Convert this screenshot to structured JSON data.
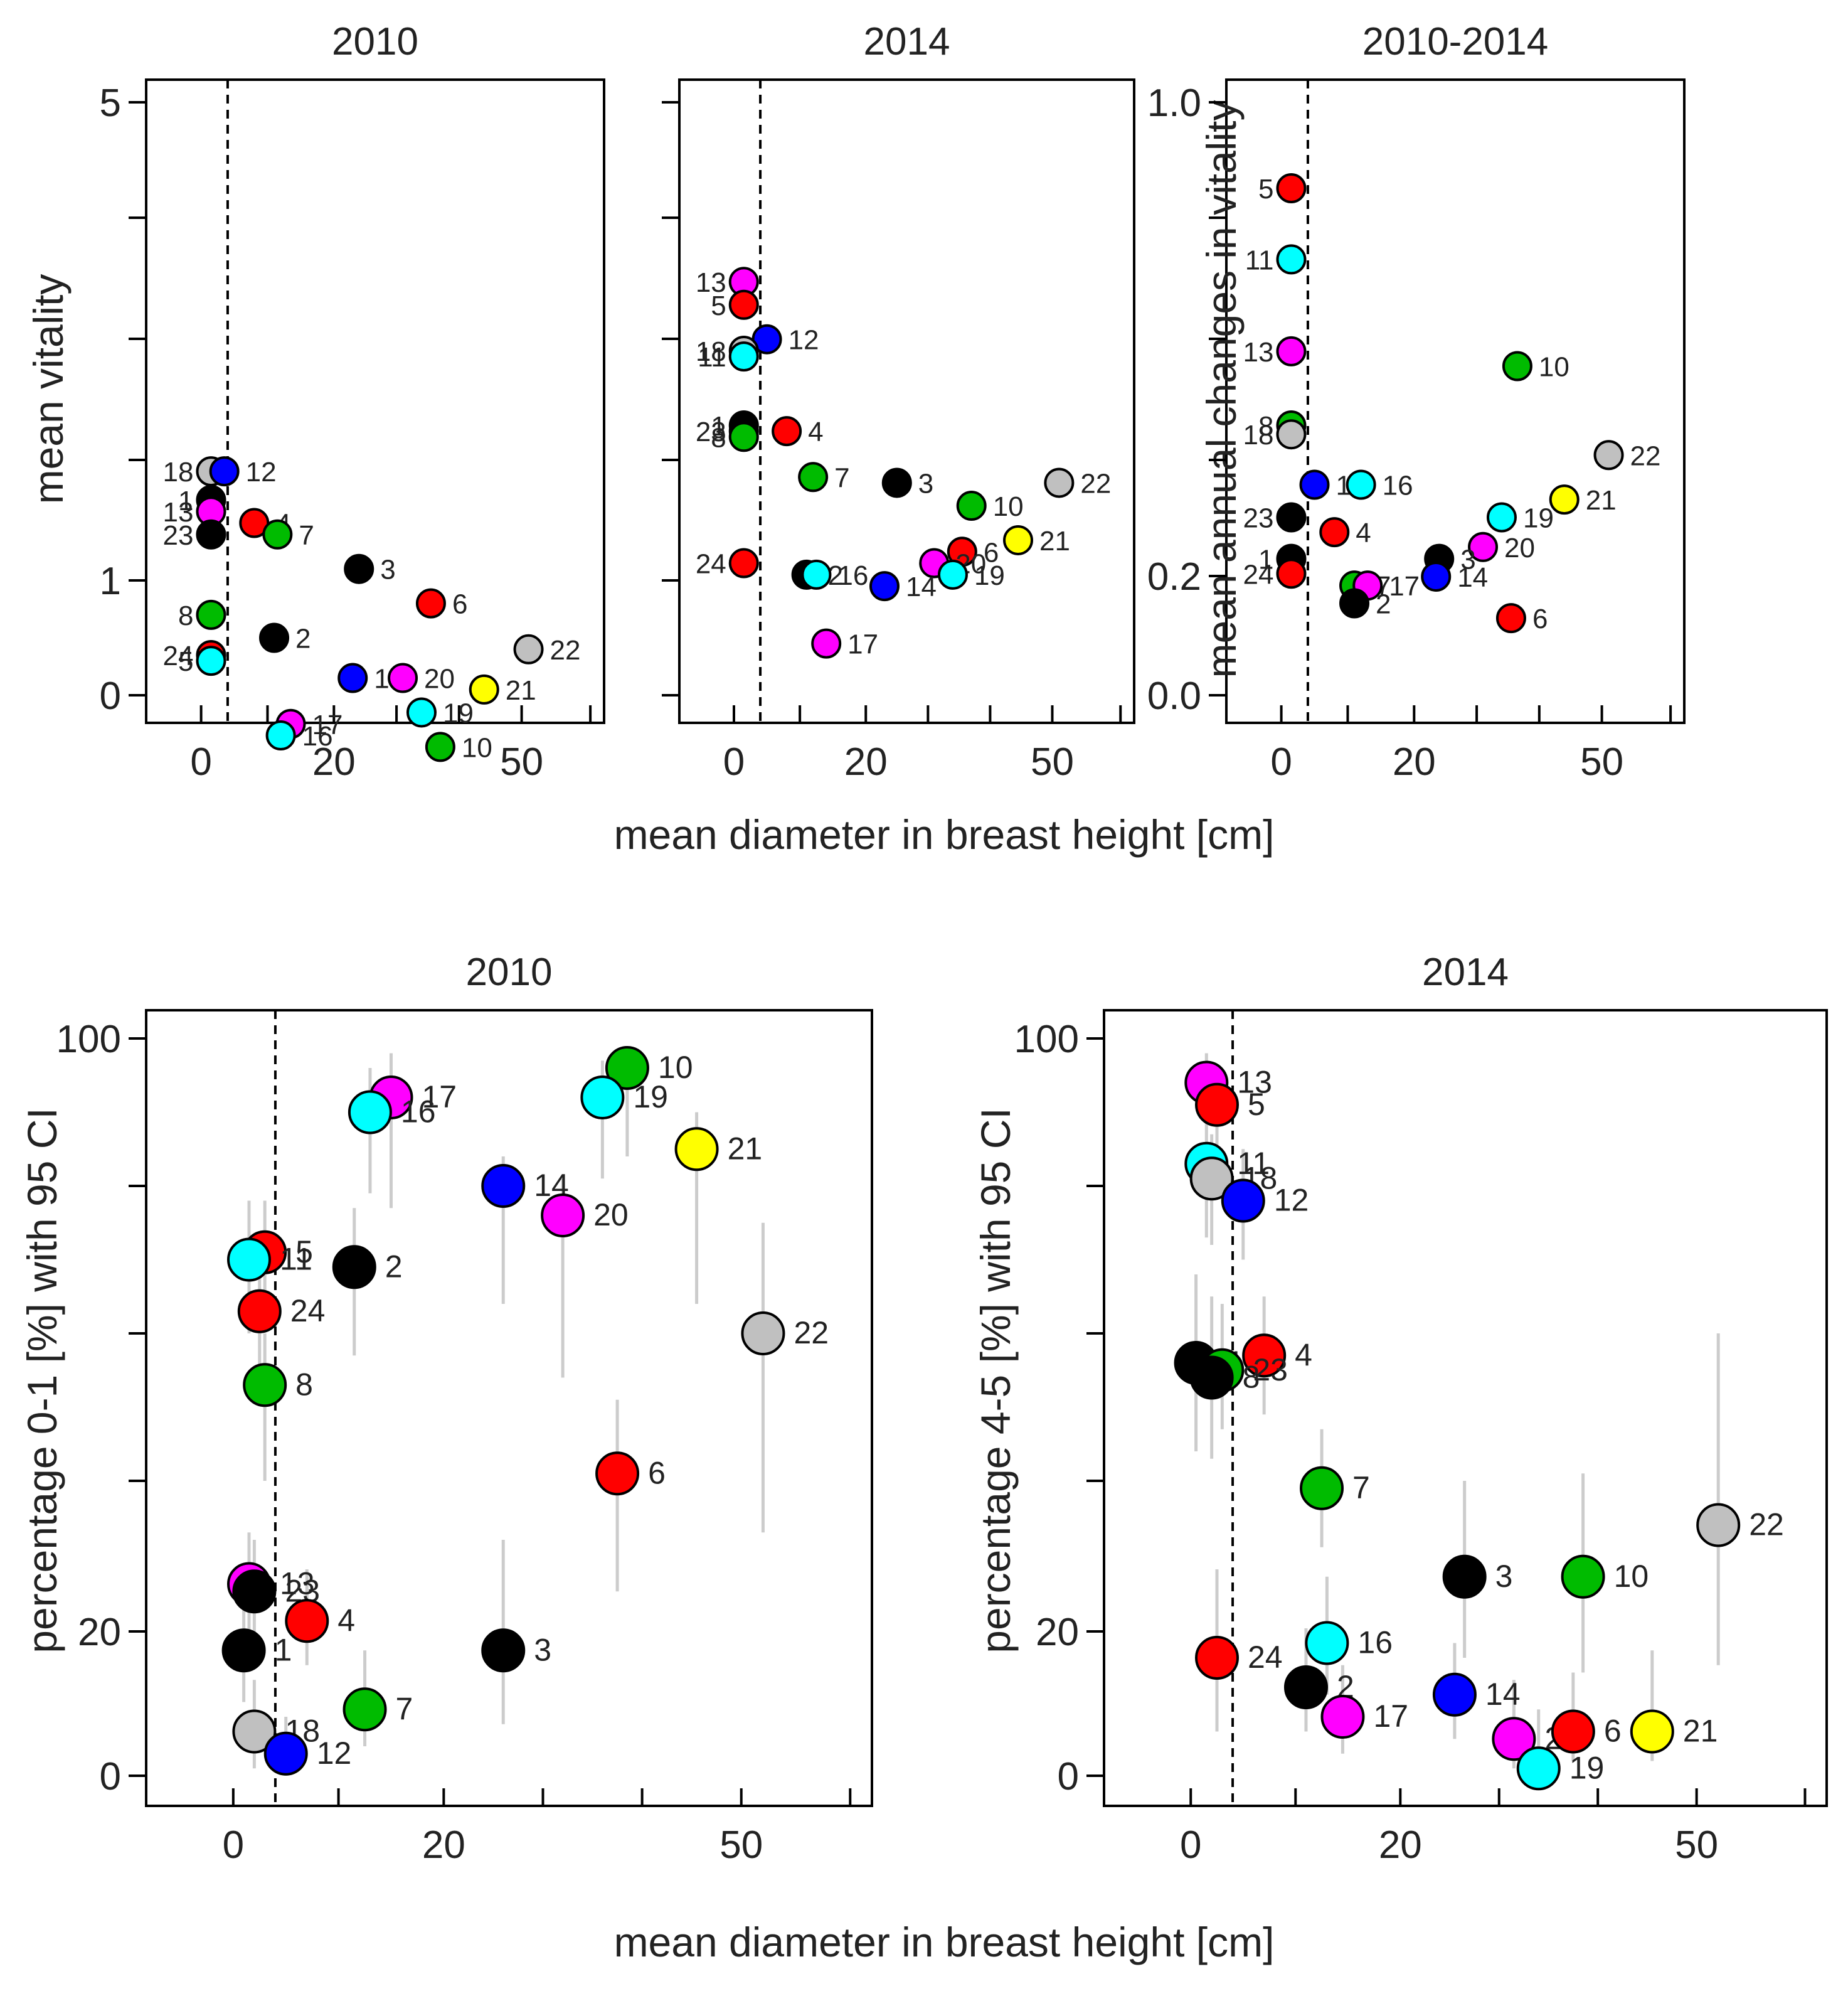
{
  "figure": {
    "top_xlabel": "mean diameter in breast height [cm]",
    "bottom_xlabel": "mean diameter in breast height [cm]"
  },
  "colors": {
    "black": "#000000",
    "red": "#ff0000",
    "blue": "#0000ff",
    "green": "#00bb00",
    "cyan": "#00ffff",
    "magenta": "#ff00ff",
    "grey": "#c0c0c0",
    "yellow": "#ffff00",
    "ci": "#cccccc"
  },
  "chart_data": [
    {
      "type": "scatter",
      "title": "2010",
      "xlabel": "",
      "ylabel": "mean vitality",
      "x_ticks": [
        "0",
        "20",
        "50"
      ],
      "y_ticks": [
        "0",
        "1",
        "5"
      ],
      "x_ref_line": 4,
      "points": [
        {
          "label": "18",
          "x": 1.5,
          "y": 1.95,
          "color": "grey"
        },
        {
          "label": "12",
          "x": 3.5,
          "y": 1.95,
          "color": "blue"
        },
        {
          "label": "1",
          "x": 1.5,
          "y": 1.7,
          "color": "black"
        },
        {
          "label": "13",
          "x": 1.5,
          "y": 1.6,
          "color": "magenta"
        },
        {
          "label": "4",
          "x": 8,
          "y": 1.5,
          "color": "red"
        },
        {
          "label": "7",
          "x": 11.5,
          "y": 1.4,
          "color": "green"
        },
        {
          "label": "23",
          "x": 1.5,
          "y": 1.4,
          "color": "black"
        },
        {
          "label": "3",
          "x": 24,
          "y": 1.1,
          "color": "black"
        },
        {
          "label": "6",
          "x": 35.5,
          "y": 0.8,
          "color": "red"
        },
        {
          "label": "8",
          "x": 1.5,
          "y": 0.7,
          "color": "green"
        },
        {
          "label": "2",
          "x": 11,
          "y": 0.5,
          "color": "black"
        },
        {
          "label": "22",
          "x": 51,
          "y": 0.4,
          "color": "grey"
        },
        {
          "label": "24",
          "x": 1.5,
          "y": 0.35,
          "color": "red"
        },
        {
          "label": "5",
          "x": 1.5,
          "y": 0.3,
          "color": "cyan"
        },
        {
          "label": "14",
          "x": 23,
          "y": 0.15,
          "color": "blue"
        },
        {
          "label": "20",
          "x": 31,
          "y": 0.15,
          "color": "magenta"
        },
        {
          "label": "21",
          "x": 44,
          "y": 0.05,
          "color": "yellow"
        },
        {
          "label": "19",
          "x": 34,
          "y": -0.15,
          "color": "cyan"
        },
        {
          "label": "17",
          "x": 13.5,
          "y": -0.25,
          "color": "magenta"
        },
        {
          "label": "16",
          "x": 12,
          "y": -0.35,
          "color": "cyan"
        },
        {
          "label": "10",
          "x": 37,
          "y": -0.45,
          "color": "green"
        }
      ]
    },
    {
      "type": "scatter",
      "title": "2014",
      "xlabel": "",
      "ylabel": "",
      "x_ticks": [
        "0",
        "20",
        "50"
      ],
      "y_ticks": [],
      "x_ref_line": 4,
      "points": [
        {
          "label": "13",
          "x": 1.5,
          "y": 3.6,
          "color": "magenta"
        },
        {
          "label": "5",
          "x": 1.5,
          "y": 3.4,
          "color": "red"
        },
        {
          "label": "12",
          "x": 5,
          "y": 3.1,
          "color": "blue"
        },
        {
          "label": "18",
          "x": 1.5,
          "y": 3.0,
          "color": "grey"
        },
        {
          "label": "11",
          "x": 1.5,
          "y": 2.95,
          "color": "cyan"
        },
        {
          "label": "1",
          "x": 1.5,
          "y": 2.35,
          "color": "black"
        },
        {
          "label": "4",
          "x": 8,
          "y": 2.3,
          "color": "red"
        },
        {
          "label": "23",
          "x": 1.5,
          "y": 2.3,
          "color": "black"
        },
        {
          "label": "8",
          "x": 1.5,
          "y": 2.25,
          "color": "green"
        },
        {
          "label": "7",
          "x": 12,
          "y": 1.9,
          "color": "green"
        },
        {
          "label": "3",
          "x": 25,
          "y": 1.85,
          "color": "black"
        },
        {
          "label": "22",
          "x": 51,
          "y": 1.85,
          "color": "grey"
        },
        {
          "label": "10",
          "x": 37,
          "y": 1.65,
          "color": "green"
        },
        {
          "label": "21",
          "x": 44.5,
          "y": 1.35,
          "color": "yellow"
        },
        {
          "label": "6",
          "x": 35.5,
          "y": 1.25,
          "color": "red"
        },
        {
          "label": "20",
          "x": 31,
          "y": 1.15,
          "color": "magenta"
        },
        {
          "label": "24",
          "x": 1.5,
          "y": 1.15,
          "color": "red"
        },
        {
          "label": "2",
          "x": 11,
          "y": 1.05,
          "color": "black"
        },
        {
          "label": "16",
          "x": 12.5,
          "y": 1.05,
          "color": "cyan"
        },
        {
          "label": "19",
          "x": 34,
          "y": 1.05,
          "color": "cyan"
        },
        {
          "label": "14",
          "x": 23,
          "y": 0.95,
          "color": "blue"
        },
        {
          "label": "17",
          "x": 14,
          "y": 0.45,
          "color": "magenta"
        }
      ]
    },
    {
      "type": "scatter",
      "title": "2010-2014",
      "xlabel": "",
      "ylabel": "mean annual changes in vitality",
      "x_ticks": [
        "0",
        "20",
        "50"
      ],
      "y_ticks": [
        "0.0",
        "0.2",
        "1.0"
      ],
      "x_ref_line": 4,
      "points": [
        {
          "label": "5",
          "x": 1.5,
          "y": 0.855,
          "color": "red"
        },
        {
          "label": "11",
          "x": 1.5,
          "y": 0.735,
          "color": "cyan"
        },
        {
          "label": "13",
          "x": 1.5,
          "y": 0.58,
          "color": "magenta"
        },
        {
          "label": "10",
          "x": 36.5,
          "y": 0.555,
          "color": "green"
        },
        {
          "label": "8",
          "x": 1.5,
          "y": 0.455,
          "color": "green"
        },
        {
          "label": "18",
          "x": 1.5,
          "y": 0.44,
          "color": "grey"
        },
        {
          "label": "22",
          "x": 51,
          "y": 0.405,
          "color": "grey"
        },
        {
          "label": "12",
          "x": 5,
          "y": 0.355,
          "color": "blue"
        },
        {
          "label": "16",
          "x": 12,
          "y": 0.355,
          "color": "cyan"
        },
        {
          "label": "21",
          "x": 44,
          "y": 0.33,
          "color": "yellow"
        },
        {
          "label": "19",
          "x": 34,
          "y": 0.3,
          "color": "cyan"
        },
        {
          "label": "23",
          "x": 1.5,
          "y": 0.3,
          "color": "black"
        },
        {
          "label": "4",
          "x": 8,
          "y": 0.275,
          "color": "red"
        },
        {
          "label": "20",
          "x": 31,
          "y": 0.25,
          "color": "magenta"
        },
        {
          "label": "1",
          "x": 1.5,
          "y": 0.23,
          "color": "black"
        },
        {
          "label": "3",
          "x": 24,
          "y": 0.23,
          "color": "black"
        },
        {
          "label": "24",
          "x": 1.5,
          "y": 0.205,
          "color": "red"
        },
        {
          "label": "14",
          "x": 23.5,
          "y": 0.2,
          "color": "blue"
        },
        {
          "label": "7",
          "x": 11,
          "y": 0.185,
          "color": "green"
        },
        {
          "label": "17",
          "x": 13,
          "y": 0.185,
          "color": "magenta"
        },
        {
          "label": "2",
          "x": 11,
          "y": 0.155,
          "color": "black"
        },
        {
          "label": "6",
          "x": 35.5,
          "y": 0.13,
          "color": "red"
        }
      ]
    },
    {
      "type": "scatter",
      "title": "2010",
      "xlabel": "",
      "ylabel": "percentage 0-1 [%] with 95 CI",
      "x_ticks": [
        "0",
        "20",
        "50"
      ],
      "y_ticks": [
        "0",
        "20",
        "100"
      ],
      "x_ref_line": 4,
      "points": [
        {
          "label": "10",
          "x": 38.5,
          "y": 96,
          "color": "green",
          "ci": [
            84,
            98
          ]
        },
        {
          "label": "17",
          "x": 15,
          "y": 92,
          "color": "magenta",
          "ci": [
            77,
            98
          ]
        },
        {
          "label": "19",
          "x": 36,
          "y": 92,
          "color": "cyan",
          "ci": [
            81,
            97
          ]
        },
        {
          "label": "16",
          "x": 13,
          "y": 90,
          "color": "cyan",
          "ci": [
            79,
            96
          ]
        },
        {
          "label": "21",
          "x": 45.5,
          "y": 85,
          "color": "yellow",
          "ci": [
            64,
            90
          ]
        },
        {
          "label": "14",
          "x": 26,
          "y": 80,
          "color": "blue",
          "ci": [
            64,
            84
          ]
        },
        {
          "label": "20",
          "x": 32,
          "y": 76,
          "color": "magenta",
          "ci": [
            54,
            81
          ]
        },
        {
          "label": "5",
          "x": 3,
          "y": 71,
          "color": "red",
          "ci": [
            62,
            78
          ]
        },
        {
          "label": "11",
          "x": 1.5,
          "y": 70,
          "color": "cyan",
          "ci": [
            60,
            78
          ]
        },
        {
          "label": "2",
          "x": 11.5,
          "y": 69,
          "color": "black",
          "ci": [
            57,
            77
          ]
        },
        {
          "label": "24",
          "x": 2.5,
          "y": 63,
          "color": "red",
          "ci": [
            54,
            70
          ]
        },
        {
          "label": "22",
          "x": 52,
          "y": 60,
          "color": "grey",
          "ci": [
            33,
            75
          ]
        },
        {
          "label": "8",
          "x": 3,
          "y": 53,
          "color": "green",
          "ci": [
            40,
            60
          ]
        },
        {
          "label": "6",
          "x": 37.5,
          "y": 41,
          "color": "red",
          "ci": [
            25,
            51
          ]
        },
        {
          "label": "13",
          "x": 1.5,
          "y": 26,
          "color": "magenta",
          "ci": [
            18,
            33
          ]
        },
        {
          "label": "23",
          "x": 2,
          "y": 25,
          "color": "black",
          "ci": [
            17,
            32
          ]
        },
        {
          "label": "4",
          "x": 7,
          "y": 21,
          "color": "red",
          "ci": [
            15,
            28
          ]
        },
        {
          "label": "1",
          "x": 1,
          "y": 17,
          "color": "black",
          "ci": [
            10,
            24
          ]
        },
        {
          "label": "3",
          "x": 26,
          "y": 17,
          "color": "black",
          "ci": [
            7,
            32
          ]
        },
        {
          "label": "7",
          "x": 12.5,
          "y": 9,
          "color": "green",
          "ci": [
            4,
            17
          ]
        },
        {
          "label": "18",
          "x": 2,
          "y": 6,
          "color": "grey",
          "ci": [
            1,
            13
          ]
        },
        {
          "label": "12",
          "x": 5,
          "y": 3,
          "color": "blue",
          "ci": [
            0,
            8
          ]
        }
      ]
    },
    {
      "type": "scatter",
      "title": "2014",
      "xlabel": "",
      "ylabel": "percentage 4-5 [%] with 95 CI",
      "x_ticks": [
        "0",
        "20",
        "50"
      ],
      "y_ticks": [
        "0",
        "20",
        "100"
      ],
      "x_ref_line": 4,
      "points": [
        {
          "label": "13",
          "x": 1.5,
          "y": 94,
          "color": "magenta",
          "ci": [
            88,
            98
          ]
        },
        {
          "label": "5",
          "x": 2.5,
          "y": 91,
          "color": "red",
          "ci": [
            84,
            96
          ]
        },
        {
          "label": "11",
          "x": 1.5,
          "y": 83,
          "color": "cyan",
          "ci": [
            73,
            88
          ]
        },
        {
          "label": "18",
          "x": 2,
          "y": 81,
          "color": "grey",
          "ci": [
            72,
            87
          ]
        },
        {
          "label": "12",
          "x": 5,
          "y": 78,
          "color": "blue",
          "ci": [
            70,
            85
          ]
        },
        {
          "label": "4",
          "x": 7,
          "y": 57,
          "color": "red",
          "ci": [
            49,
            65
          ]
        },
        {
          "label": "1",
          "x": 0.5,
          "y": 56,
          "color": "black",
          "ci": [
            44,
            68
          ]
        },
        {
          "label": "23",
          "x": 3,
          "y": 55,
          "color": "green",
          "ci": [
            47,
            64
          ]
        },
        {
          "label": "8",
          "x": 2,
          "y": 54,
          "color": "black",
          "ci": [
            43,
            65
          ]
        },
        {
          "label": "7",
          "x": 12.5,
          "y": 39,
          "color": "green",
          "ci": [
            31,
            47
          ]
        },
        {
          "label": "22",
          "x": 52,
          "y": 34,
          "color": "grey",
          "ci": [
            15,
            60
          ]
        },
        {
          "label": "3",
          "x": 26.5,
          "y": 27,
          "color": "black",
          "ci": [
            16,
            40
          ]
        },
        {
          "label": "10",
          "x": 38.5,
          "y": 27,
          "color": "green",
          "ci": [
            14,
            41
          ]
        },
        {
          "label": "16",
          "x": 13,
          "y": 18,
          "color": "cyan",
          "ci": [
            11,
            27
          ]
        },
        {
          "label": "24",
          "x": 2.5,
          "y": 16,
          "color": "red",
          "ci": [
            6,
            28
          ]
        },
        {
          "label": "2",
          "x": 11,
          "y": 12,
          "color": "black",
          "ci": [
            6,
            20
          ]
        },
        {
          "label": "14",
          "x": 25.5,
          "y": 11,
          "color": "blue",
          "ci": [
            5,
            18
          ]
        },
        {
          "label": "17",
          "x": 14.5,
          "y": 8,
          "color": "magenta",
          "ci": [
            3,
            15
          ]
        },
        {
          "label": "20",
          "x": 31.5,
          "y": 5,
          "color": "magenta",
          "ci": [
            1,
            13
          ]
        },
        {
          "label": "6",
          "x": 37.5,
          "y": 6,
          "color": "red",
          "ci": [
            2,
            14
          ]
        },
        {
          "label": "21",
          "x": 45.5,
          "y": 6,
          "color": "yellow",
          "ci": [
            2,
            17
          ]
        },
        {
          "label": "19",
          "x": 34,
          "y": 1,
          "color": "cyan",
          "ci": [
            0,
            9
          ]
        }
      ]
    }
  ]
}
